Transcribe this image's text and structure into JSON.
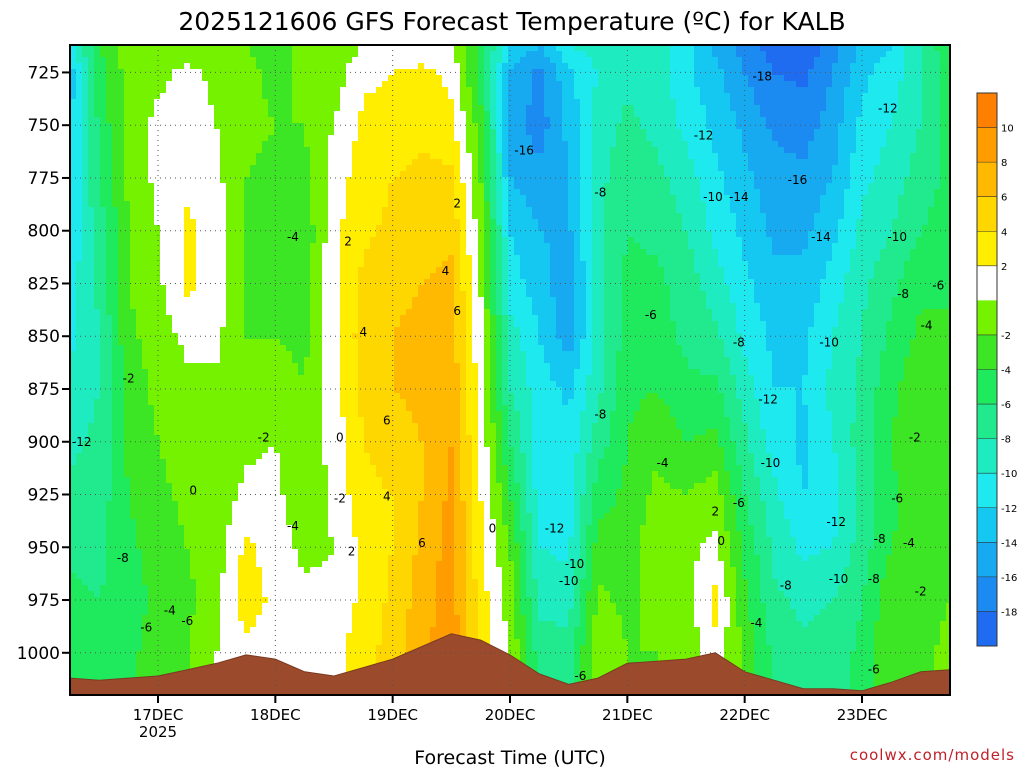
{
  "chart_data": {
    "type": "heatmap",
    "title": "2025121606 GFS Forecast Temperature (ºC) for KALB",
    "xlabel": "Forecast Time (UTC)",
    "ylabel": "",
    "y_ticks": [
      725,
      750,
      775,
      800,
      825,
      850,
      875,
      900,
      925,
      950,
      975,
      1000
    ],
    "ylim": [
      1020,
      712
    ],
    "x_ticks": [
      {
        "day": 17,
        "label": "17DEC",
        "sublabel": "2025"
      },
      {
        "day": 18,
        "label": "18DEC",
        "sublabel": ""
      },
      {
        "day": 19,
        "label": "19DEC",
        "sublabel": ""
      },
      {
        "day": 20,
        "label": "20DEC",
        "sublabel": ""
      },
      {
        "day": 21,
        "label": "21DEC",
        "sublabel": ""
      },
      {
        "day": 22,
        "label": "22DEC",
        "sublabel": ""
      },
      {
        "day": 23,
        "label": "23DEC",
        "sublabel": ""
      }
    ],
    "xlim_days": [
      16.25,
      23.75
    ],
    "colorbar": {
      "labels": [
        10,
        8,
        6,
        4,
        2,
        -2,
        -4,
        -6,
        -8,
        -10,
        -12,
        -14,
        -16,
        -18
      ],
      "levels": [
        12,
        10,
        8,
        6,
        4,
        2,
        0,
        -2,
        -4,
        -6,
        -8,
        -10,
        -12,
        -14,
        -16,
        -18,
        -20
      ],
      "colors": [
        "#ff8000",
        "#ff9c00",
        "#ffb900",
        "#ffd700",
        "#ffee00",
        "#ffffff",
        "#74f200",
        "#3ce625",
        "#1fe95c",
        "#20e98e",
        "#1eebbf",
        "#1ee9ef",
        "#15c8f2",
        "#18aaf1",
        "#1b8bf1",
        "#1f6cf1"
      ]
    },
    "columns": [
      {
        "day": 16.25,
        "surface": 1012,
        "t": [
          -11.0,
          -13.0,
          -12.5,
          -12.0,
          -11.5,
          -11.0,
          -10.5,
          -9.5,
          -8.5,
          -7.5,
          -6.5,
          -5.5,
          -4.5
        ]
      },
      {
        "day": 16.5,
        "surface": 1013,
        "t": [
          -4.0,
          -5.0,
          -5.5,
          -6.0,
          -7.0,
          -7.5,
          -8.0,
          -8.0,
          -7.5,
          -7.0,
          -6.5,
          -6.0,
          -5.0
        ]
      },
      {
        "day": 16.75,
        "surface": 1012,
        "t": [
          -1.0,
          -1.0,
          -1.0,
          -1.5,
          -2.0,
          -2.0,
          -2.5,
          -3.0,
          -3.5,
          -4.0,
          -4.5,
          -5.0,
          -4.5
        ]
      },
      {
        "day": 17.0,
        "surface": 1011,
        "t": [
          -1.5,
          -0.5,
          0.5,
          0.5,
          0.0,
          -0.5,
          -1.0,
          -1.5,
          -2.0,
          -2.5,
          -3.0,
          -3.5,
          -3.0
        ]
      },
      {
        "day": 17.25,
        "surface": 1008,
        "t": [
          -1.0,
          0.5,
          1.0,
          1.5,
          2.5,
          2.5,
          0.5,
          -0.5,
          -1.0,
          -1.5,
          -2.0,
          -2.5,
          -2.0
        ]
      },
      {
        "day": 17.5,
        "surface": 1005,
        "t": [
          -1.5,
          -0.5,
          0.0,
          0.5,
          1.0,
          1.0,
          0.5,
          -0.5,
          -1.5,
          -1.5,
          -1.0,
          -0.5,
          0.0
        ]
      },
      {
        "day": 17.75,
        "surface": 1001,
        "t": [
          -2.0,
          -1.5,
          -1.5,
          -2.0,
          -2.0,
          -2.5,
          -2.0,
          -1.5,
          -0.5,
          0.5,
          2.5,
          3.0,
          1.5
        ]
      },
      {
        "day": 18.0,
        "surface": 1003,
        "t": [
          -3.0,
          -2.5,
          -2.0,
          -2.5,
          -3.0,
          -3.0,
          -2.0,
          -1.0,
          0.0,
          0.5,
          1.0,
          1.5,
          1.0
        ]
      },
      {
        "day": 18.25,
        "surface": 1009,
        "t": [
          -1.0,
          -1.5,
          -2.0,
          -2.5,
          -3.5,
          -3.0,
          -2.5,
          -2.0,
          -2.0,
          -1.5,
          -0.5,
          0.5,
          1.0
        ]
      },
      {
        "day": 18.5,
        "surface": 1011,
        "t": [
          -1.5,
          -1.0,
          0.0,
          1.0,
          1.5,
          1.5,
          1.5,
          1.0,
          1.0,
          0.5,
          0.0,
          0.5,
          1.5
        ]
      },
      {
        "day": 18.75,
        "surface": 1007,
        "t": [
          0.0,
          1.5,
          2.5,
          3.0,
          3.5,
          4.5,
          5.0,
          4.5,
          4.0,
          3.5,
          2.5,
          2.5,
          3.0
        ]
      },
      {
        "day": 19.0,
        "surface": 1003,
        "t": [
          0.5,
          2.0,
          3.0,
          4.0,
          4.5,
          5.5,
          6.0,
          6.0,
          5.0,
          4.0,
          4.0,
          4.5,
          5.0
        ]
      },
      {
        "day": 19.25,
        "surface": 997,
        "t": [
          0.5,
          2.5,
          3.5,
          4.5,
          5.0,
          6.0,
          6.5,
          6.5,
          6.0,
          6.0,
          6.5,
          7.0,
          7.5
        ]
      },
      {
        "day": 19.5,
        "surface": 991,
        "t": [
          0.5,
          1.5,
          2.5,
          4.5,
          5.5,
          6.5,
          7.0,
          7.5,
          8.0,
          8.5,
          9.0,
          9.0,
          9.5
        ]
      },
      {
        "day": 19.75,
        "surface": 994,
        "t": [
          -4.5,
          -5.0,
          -3.0,
          -2.0,
          -1.0,
          0.0,
          0.5,
          1.0,
          1.5,
          2.0,
          2.5,
          3.0,
          3.5
        ]
      },
      {
        "day": 20.0,
        "surface": 1001,
        "t": [
          -12.0,
          -14.0,
          -15.0,
          -14.0,
          -12.0,
          -11.0,
          -9.0,
          -8.0,
          -6.0,
          -4.0,
          -2.0,
          -1.0,
          0.0
        ]
      },
      {
        "day": 20.25,
        "surface": 1010,
        "t": [
          -14.0,
          -16.5,
          -17.0,
          -15.5,
          -14.0,
          -13.0,
          -12.0,
          -11.0,
          -11.0,
          -11.0,
          -10.0,
          -8.5,
          -7.0
        ]
      },
      {
        "day": 20.5,
        "surface": 1015,
        "t": [
          -10.0,
          -12.5,
          -13.5,
          -14.0,
          -14.5,
          -15.5,
          -15.0,
          -12.5,
          -11.5,
          -11.0,
          -10.5,
          -9.0,
          -7.0
        ]
      },
      {
        "day": 20.75,
        "surface": 1012,
        "t": [
          -9.0,
          -10.0,
          -9.0,
          -8.5,
          -8.5,
          -9.0,
          -9.0,
          -8.5,
          -7.0,
          -5.0,
          -3.0,
          -1.5,
          -0.5
        ]
      },
      {
        "day": 21.0,
        "surface": 1005,
        "t": [
          -8.0,
          -8.5,
          -7.5,
          -7.0,
          -6.0,
          -5.5,
          -5.0,
          -4.5,
          -4.0,
          -3.5,
          -3.0,
          -2.5,
          -2.0
        ]
      },
      {
        "day": 21.25,
        "surface": 1004,
        "t": [
          -9.0,
          -9.0,
          -8.5,
          -7.5,
          -6.5,
          -5.5,
          -5.0,
          -4.0,
          -2.5,
          -1.5,
          -0.5,
          -1.5,
          -2.0
        ]
      },
      {
        "day": 21.5,
        "surface": 1003,
        "t": [
          -11.5,
          -11.5,
          -10.5,
          -9.0,
          -8.0,
          -7.0,
          -6.5,
          -5.5,
          -4.0,
          -2.0,
          -0.5,
          -1.0,
          -1.5
        ]
      },
      {
        "day": 21.75,
        "surface": 1000,
        "t": [
          -14.5,
          -13.5,
          -12.5,
          -11.5,
          -10.5,
          -9.0,
          -7.5,
          -5.5,
          -3.5,
          -1.0,
          0.5,
          2.5,
          1.5
        ]
      },
      {
        "day": 22.0,
        "surface": 1009,
        "t": [
          -17.0,
          -16.0,
          -14.5,
          -13.5,
          -12.5,
          -11.5,
          -10.5,
          -9.0,
          -7.5,
          -6.0,
          -4.5,
          -3.5,
          -2.5
        ]
      },
      {
        "day": 22.25,
        "surface": 1013,
        "t": [
          -19.0,
          -18.0,
          -16.5,
          -15.0,
          -14.5,
          -13.5,
          -12.5,
          -12.0,
          -11.0,
          -9.5,
          -8.5,
          -7.5,
          -6.5
        ]
      },
      {
        "day": 22.5,
        "surface": 1017,
        "t": [
          -19.5,
          -18.5,
          -17.0,
          -15.5,
          -14.5,
          -13.5,
          -12.5,
          -12.0,
          -12.5,
          -12.0,
          -10.5,
          -8.5,
          -7.5
        ]
      },
      {
        "day": 22.75,
        "surface": 1017,
        "t": [
          -17.0,
          -16.0,
          -15.0,
          -14.0,
          -12.5,
          -11.0,
          -10.0,
          -9.5,
          -10.0,
          -11.0,
          -10.0,
          -8.0,
          -7.0
        ]
      },
      {
        "day": 23.0,
        "surface": 1018,
        "t": [
          -13.5,
          -12.5,
          -11.5,
          -10.5,
          -9.5,
          -8.5,
          -8.0,
          -7.5,
          -7.0,
          -7.5,
          -7.0,
          -6.0,
          -5.5
        ]
      },
      {
        "day": 23.25,
        "surface": 1014,
        "t": [
          -12.0,
          -11.0,
          -10.0,
          -9.0,
          -8.0,
          -6.5,
          -5.5,
          -4.5,
          -4.0,
          -4.5,
          -4.0,
          -2.5,
          -2.0
        ]
      },
      {
        "day": 23.5,
        "surface": 1009,
        "t": [
          -8.0,
          -8.5,
          -8.0,
          -7.0,
          -6.0,
          -4.5,
          -3.5,
          -2.5,
          -2.0,
          -2.5,
          -3.0,
          -3.5,
          -3.0
        ]
      },
      {
        "day": 23.75,
        "surface": 1008,
        "t": [
          -4.0,
          -5.0,
          -5.0,
          -5.5,
          -5.0,
          -4.5,
          -3.5,
          -2.5,
          -3.0,
          -3.5,
          -3.0,
          -2.0,
          -1.0
        ]
      }
    ],
    "column_pressures": [
      712,
      725,
      750,
      775,
      800,
      825,
      850,
      875,
      900,
      925,
      950,
      975,
      1000
    ],
    "contour_labels": [
      {
        "day": 16.35,
        "p": 900,
        "text": "-12"
      },
      {
        "day": 16.75,
        "p": 870,
        "text": "-2"
      },
      {
        "day": 16.7,
        "p": 955,
        "text": "-8"
      },
      {
        "day": 17.1,
        "p": 980,
        "text": "-4"
      },
      {
        "day": 16.9,
        "p": 988,
        "text": "-6"
      },
      {
        "day": 17.25,
        "p": 985,
        "text": "-6"
      },
      {
        "day": 17.3,
        "p": 923,
        "text": "0"
      },
      {
        "day": 17.9,
        "p": 898,
        "text": "-2"
      },
      {
        "day": 18.15,
        "p": 803,
        "text": "-4"
      },
      {
        "day": 18.15,
        "p": 940,
        "text": "-4"
      },
      {
        "day": 18.55,
        "p": 898,
        "text": "0"
      },
      {
        "day": 18.55,
        "p": 927,
        "text": "-2"
      },
      {
        "day": 18.62,
        "p": 805,
        "text": "2"
      },
      {
        "day": 18.65,
        "p": 952,
        "text": "2"
      },
      {
        "day": 18.75,
        "p": 848,
        "text": "4"
      },
      {
        "day": 18.95,
        "p": 890,
        "text": "6"
      },
      {
        "day": 18.95,
        "p": 926,
        "text": "4"
      },
      {
        "day": 19.25,
        "p": 948,
        "text": "6"
      },
      {
        "day": 19.45,
        "p": 819,
        "text": "4"
      },
      {
        "day": 19.55,
        "p": 787,
        "text": "2"
      },
      {
        "day": 19.55,
        "p": 838,
        "text": "6"
      },
      {
        "day": 19.85,
        "p": 941,
        "text": "0"
      },
      {
        "day": 20.12,
        "p": 762,
        "text": "-16"
      },
      {
        "day": 20.38,
        "p": 941,
        "text": "-12"
      },
      {
        "day": 20.5,
        "p": 966,
        "text": "-10"
      },
      {
        "day": 20.55,
        "p": 958,
        "text": "-10"
      },
      {
        "day": 20.6,
        "p": 1011,
        "text": "-6"
      },
      {
        "day": 20.77,
        "p": 782,
        "text": "-8"
      },
      {
        "day": 20.77,
        "p": 887,
        "text": "-8"
      },
      {
        "day": 21.2,
        "p": 840,
        "text": "-6"
      },
      {
        "day": 21.3,
        "p": 910,
        "text": "-4"
      },
      {
        "day": 21.65,
        "p": 755,
        "text": "-12"
      },
      {
        "day": 21.73,
        "p": 784,
        "text": "-10"
      },
      {
        "day": 21.75,
        "p": 933,
        "text": "2"
      },
      {
        "day": 21.8,
        "p": 947,
        "text": "0"
      },
      {
        "day": 21.95,
        "p": 853,
        "text": "-8"
      },
      {
        "day": 21.95,
        "p": 784,
        "text": "-14"
      },
      {
        "day": 21.95,
        "p": 929,
        "text": "-6"
      },
      {
        "day": 22.1,
        "p": 986,
        "text": "-4"
      },
      {
        "day": 22.15,
        "p": 727,
        "text": "-18"
      },
      {
        "day": 22.2,
        "p": 880,
        "text": "-12"
      },
      {
        "day": 22.22,
        "p": 910,
        "text": "-10"
      },
      {
        "day": 22.35,
        "p": 968,
        "text": "-8"
      },
      {
        "day": 22.45,
        "p": 776,
        "text": "-16"
      },
      {
        "day": 22.65,
        "p": 803,
        "text": "-14"
      },
      {
        "day": 22.72,
        "p": 853,
        "text": "-10"
      },
      {
        "day": 22.78,
        "p": 938,
        "text": "-12"
      },
      {
        "day": 22.8,
        "p": 965,
        "text": "-10"
      },
      {
        "day": 23.1,
        "p": 965,
        "text": "-8"
      },
      {
        "day": 23.15,
        "p": 946,
        "text": "-8"
      },
      {
        "day": 23.1,
        "p": 1008,
        "text": "-6"
      },
      {
        "day": 23.22,
        "p": 742,
        "text": "-12"
      },
      {
        "day": 23.3,
        "p": 803,
        "text": "-10"
      },
      {
        "day": 23.35,
        "p": 830,
        "text": "-8"
      },
      {
        "day": 23.3,
        "p": 927,
        "text": "-6"
      },
      {
        "day": 23.4,
        "p": 948,
        "text": "-4"
      },
      {
        "day": 23.45,
        "p": 898,
        "text": "-2"
      },
      {
        "day": 23.5,
        "p": 971,
        "text": "-2"
      },
      {
        "day": 23.55,
        "p": 845,
        "text": "-4"
      },
      {
        "day": 23.65,
        "p": 826,
        "text": "-6"
      }
    ]
  },
  "watermark": "coolwx.com/models"
}
